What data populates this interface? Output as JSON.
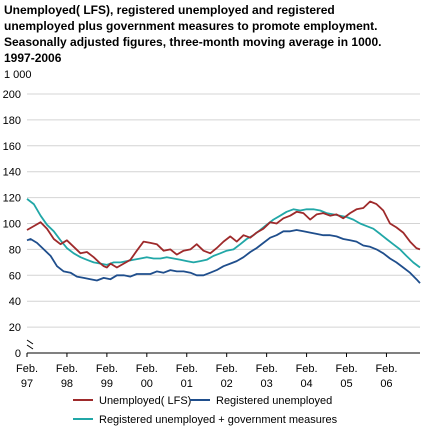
{
  "chart_data": {
    "type": "line",
    "title_lines": [
      "Unemployed( LFS), registered unemployed and registered",
      "unemployed plus government measures to promote employment.",
      "Seasonally adjusted figures, three-month moving average in 1000.",
      "1997-2006"
    ],
    "unit_label": "1 000",
    "ylim": [
      0,
      200
    ],
    "y_ticks": [
      "0",
      "20",
      "40",
      "60",
      "80",
      "100",
      "120",
      "140",
      "160",
      "180",
      "200"
    ],
    "x_ticks": [
      {
        "month": "Feb.",
        "year": "97"
      },
      {
        "month": "Feb.",
        "year": "98"
      },
      {
        "month": "Feb.",
        "year": "99"
      },
      {
        "month": "Feb.",
        "year": "00"
      },
      {
        "month": "Feb.",
        "year": "01"
      },
      {
        "month": "Feb.",
        "year": "02"
      },
      {
        "month": "Feb.",
        "year": "03"
      },
      {
        "month": "Feb.",
        "year": "04"
      },
      {
        "month": "Feb.",
        "year": "05"
      },
      {
        "month": "Feb.",
        "year": "06"
      }
    ],
    "x_range": [
      1997.08,
      2006.92
    ],
    "grid": true,
    "legend_position": "bottom",
    "series": [
      {
        "name": "Unemployed( LFS)",
        "color": "#9e2a2b",
        "points": [
          [
            1997.08,
            95
          ],
          [
            1997.25,
            98
          ],
          [
            1997.42,
            101
          ],
          [
            1997.58,
            96
          ],
          [
            1997.75,
            88
          ],
          [
            1997.92,
            84
          ],
          [
            1998.08,
            87
          ],
          [
            1998.25,
            82
          ],
          [
            1998.42,
            77
          ],
          [
            1998.58,
            78
          ],
          [
            1998.75,
            74
          ],
          [
            1998.92,
            69
          ],
          [
            1999.0,
            67
          ],
          [
            1999.08,
            66
          ],
          [
            1999.17,
            69
          ],
          [
            1999.33,
            66
          ],
          [
            1999.5,
            69
          ],
          [
            1999.67,
            72
          ],
          [
            1999.83,
            79
          ],
          [
            2000.0,
            86
          ],
          [
            2000.17,
            85
          ],
          [
            2000.33,
            84
          ],
          [
            2000.5,
            79
          ],
          [
            2000.67,
            80
          ],
          [
            2000.83,
            76
          ],
          [
            2001.0,
            79
          ],
          [
            2001.17,
            80
          ],
          [
            2001.33,
            84
          ],
          [
            2001.5,
            79
          ],
          [
            2001.67,
            77
          ],
          [
            2001.83,
            81
          ],
          [
            2002.0,
            86
          ],
          [
            2002.17,
            90
          ],
          [
            2002.33,
            86
          ],
          [
            2002.5,
            91
          ],
          [
            2002.67,
            89
          ],
          [
            2002.83,
            93
          ],
          [
            2003.0,
            96
          ],
          [
            2003.17,
            101
          ],
          [
            2003.33,
            100
          ],
          [
            2003.5,
            104
          ],
          [
            2003.67,
            106
          ],
          [
            2003.83,
            109
          ],
          [
            2004.0,
            108
          ],
          [
            2004.17,
            103
          ],
          [
            2004.33,
            107
          ],
          [
            2004.5,
            108
          ],
          [
            2004.67,
            106
          ],
          [
            2004.83,
            107
          ],
          [
            2005.0,
            104
          ],
          [
            2005.17,
            108
          ],
          [
            2005.33,
            111
          ],
          [
            2005.5,
            112
          ],
          [
            2005.67,
            117
          ],
          [
            2005.83,
            115
          ],
          [
            2006.0,
            110
          ],
          [
            2006.17,
            100
          ],
          [
            2006.33,
            97
          ],
          [
            2006.5,
            93
          ],
          [
            2006.67,
            86
          ],
          [
            2006.83,
            81
          ],
          [
            2006.92,
            80
          ]
        ]
      },
      {
        "name": "Registered unemployed",
        "color": "#1f4e8c",
        "points": [
          [
            1997.08,
            87
          ],
          [
            1997.17,
            88
          ],
          [
            1997.33,
            85
          ],
          [
            1997.5,
            80
          ],
          [
            1997.67,
            75
          ],
          [
            1997.83,
            67
          ],
          [
            1998.0,
            63
          ],
          [
            1998.17,
            62
          ],
          [
            1998.33,
            59
          ],
          [
            1998.5,
            58
          ],
          [
            1998.67,
            57
          ],
          [
            1998.83,
            56
          ],
          [
            1999.0,
            58
          ],
          [
            1999.17,
            57
          ],
          [
            1999.33,
            60
          ],
          [
            1999.5,
            60
          ],
          [
            1999.67,
            59
          ],
          [
            1999.83,
            61
          ],
          [
            2000.0,
            61
          ],
          [
            2000.17,
            61
          ],
          [
            2000.33,
            63
          ],
          [
            2000.5,
            62
          ],
          [
            2000.67,
            64
          ],
          [
            2000.83,
            63
          ],
          [
            2001.0,
            63
          ],
          [
            2001.17,
            62
          ],
          [
            2001.33,
            60
          ],
          [
            2001.5,
            60
          ],
          [
            2001.67,
            62
          ],
          [
            2001.83,
            64
          ],
          [
            2002.0,
            67
          ],
          [
            2002.17,
            69
          ],
          [
            2002.33,
            71
          ],
          [
            2002.5,
            74
          ],
          [
            2002.67,
            78
          ],
          [
            2002.83,
            81
          ],
          [
            2003.0,
            85
          ],
          [
            2003.17,
            89
          ],
          [
            2003.33,
            91
          ],
          [
            2003.5,
            94
          ],
          [
            2003.67,
            94
          ],
          [
            2003.83,
            95
          ],
          [
            2004.0,
            94
          ],
          [
            2004.17,
            93
          ],
          [
            2004.33,
            92
          ],
          [
            2004.5,
            91
          ],
          [
            2004.67,
            91
          ],
          [
            2004.83,
            90
          ],
          [
            2005.0,
            88
          ],
          [
            2005.17,
            87
          ],
          [
            2005.33,
            86
          ],
          [
            2005.5,
            83
          ],
          [
            2005.67,
            82
          ],
          [
            2005.83,
            80
          ],
          [
            2006.0,
            77
          ],
          [
            2006.17,
            73
          ],
          [
            2006.33,
            70
          ],
          [
            2006.5,
            66
          ],
          [
            2006.67,
            62
          ],
          [
            2006.83,
            57
          ],
          [
            2006.92,
            54
          ]
        ]
      },
      {
        "name": "Registered unemployed + government measures",
        "color": "#21a7a7",
        "points": [
          [
            1997.08,
            119
          ],
          [
            1997.25,
            115
          ],
          [
            1997.42,
            106
          ],
          [
            1997.58,
            99
          ],
          [
            1997.75,
            94
          ],
          [
            1997.92,
            87
          ],
          [
            1998.08,
            81
          ],
          [
            1998.25,
            77
          ],
          [
            1998.42,
            74
          ],
          [
            1998.58,
            72
          ],
          [
            1998.75,
            70
          ],
          [
            1998.92,
            69
          ],
          [
            1999.08,
            68
          ],
          [
            1999.25,
            70
          ],
          [
            1999.42,
            70
          ],
          [
            1999.58,
            71
          ],
          [
            1999.75,
            72
          ],
          [
            1999.92,
            73
          ],
          [
            2000.08,
            74
          ],
          [
            2000.25,
            73
          ],
          [
            2000.42,
            73
          ],
          [
            2000.58,
            74
          ],
          [
            2000.75,
            73
          ],
          [
            2000.92,
            72
          ],
          [
            2001.08,
            71
          ],
          [
            2001.25,
            70
          ],
          [
            2001.42,
            71
          ],
          [
            2001.58,
            72
          ],
          [
            2001.75,
            75
          ],
          [
            2001.92,
            77
          ],
          [
            2002.08,
            79
          ],
          [
            2002.25,
            80
          ],
          [
            2002.42,
            84
          ],
          [
            2002.58,
            88
          ],
          [
            2002.75,
            91
          ],
          [
            2002.92,
            95
          ],
          [
            2003.08,
            99
          ],
          [
            2003.25,
            103
          ],
          [
            2003.42,
            106
          ],
          [
            2003.58,
            109
          ],
          [
            2003.75,
            111
          ],
          [
            2003.92,
            110
          ],
          [
            2004.08,
            111
          ],
          [
            2004.25,
            111
          ],
          [
            2004.42,
            110
          ],
          [
            2004.58,
            108
          ],
          [
            2004.75,
            107
          ],
          [
            2004.92,
            106
          ],
          [
            2005.08,
            105
          ],
          [
            2005.25,
            103
          ],
          [
            2005.42,
            100
          ],
          [
            2005.58,
            98
          ],
          [
            2005.75,
            96
          ],
          [
            2005.92,
            92
          ],
          [
            2006.08,
            88
          ],
          [
            2006.25,
            84
          ],
          [
            2006.42,
            80
          ],
          [
            2006.58,
            75
          ],
          [
            2006.75,
            70
          ],
          [
            2006.92,
            66
          ]
        ]
      }
    ]
  }
}
